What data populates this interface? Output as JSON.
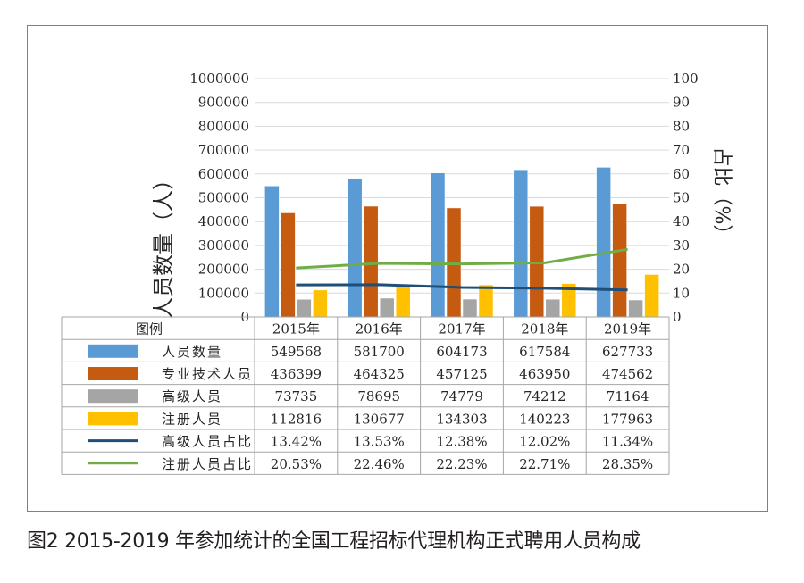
{
  "figure_caption": "图2  2015-2019 年参加统计的全国工程招标代理机构正式聘用人员构成",
  "chart_data": {
    "type": "bar",
    "categories": [
      "2015年",
      "2016年",
      "2017年",
      "2018年",
      "2019年"
    ],
    "ylabel_left": "人员数量（人）",
    "ylabel_right": "占比（%）",
    "ylim_left": [
      0,
      1000000
    ],
    "ylim_right": [
      0,
      100
    ],
    "yticks_left": [
      "0",
      "100000",
      "200000",
      "300000",
      "400000",
      "500000",
      "600000",
      "700000",
      "800000",
      "900000",
      "1000000"
    ],
    "yticks_right": [
      "0",
      "10",
      "20",
      "30",
      "40",
      "50",
      "60",
      "70",
      "80",
      "90",
      "100"
    ],
    "grid": true,
    "legend_header": "图例",
    "series": [
      {
        "name": "人员数量",
        "kind": "bar",
        "axis": "left",
        "color": "#5b9bd5",
        "values": [
          549568,
          581700,
          604173,
          617584,
          627733
        ],
        "labels": [
          "549568",
          "581700",
          "604173",
          "617584",
          "627733"
        ]
      },
      {
        "name": "专业技术人员",
        "kind": "bar",
        "axis": "left",
        "color": "#c55a11",
        "values": [
          436399,
          464325,
          457125,
          463950,
          474562
        ],
        "labels": [
          "436399",
          "464325",
          "457125",
          "463950",
          "474562"
        ]
      },
      {
        "name": "高级人员",
        "kind": "bar",
        "axis": "left",
        "color": "#a5a5a5",
        "values": [
          73735,
          78695,
          74779,
          74212,
          71164
        ],
        "labels": [
          "73735",
          "78695",
          "74779",
          "74212",
          "71164"
        ]
      },
      {
        "name": "注册人员",
        "kind": "bar",
        "axis": "left",
        "color": "#ffc000",
        "values": [
          112816,
          130677,
          134303,
          140223,
          177963
        ],
        "labels": [
          "112816",
          "130677",
          "134303",
          "140223",
          "177963"
        ]
      },
      {
        "name": "高级人员占比",
        "kind": "line",
        "axis": "right",
        "color": "#1f4e79",
        "values": [
          13.42,
          13.53,
          12.38,
          12.02,
          11.34
        ],
        "labels": [
          "13.42%",
          "13.53%",
          "12.38%",
          "12.02%",
          "11.34%"
        ]
      },
      {
        "name": "注册人员占比",
        "kind": "line",
        "axis": "right",
        "color": "#70ad47",
        "values": [
          20.53,
          22.46,
          22.23,
          22.71,
          28.35
        ],
        "labels": [
          "20.53%",
          "22.46%",
          "22.23%",
          "22.71%",
          "28.35%"
        ]
      }
    ]
  }
}
